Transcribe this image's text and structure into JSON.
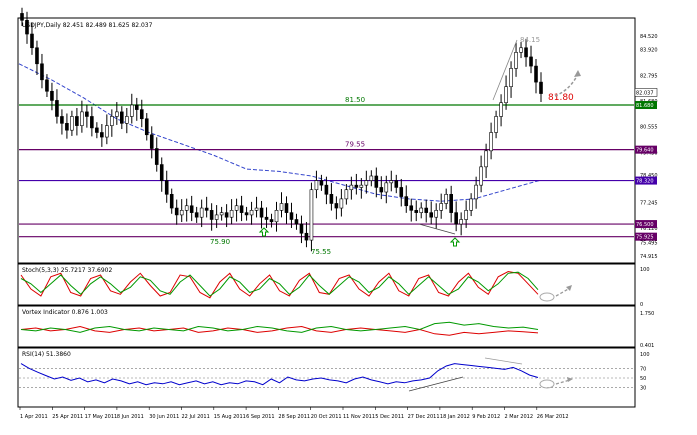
{
  "chart_data": [
    {
      "type": "candlestick",
      "title": "USDJPY,Daily  82.451 82.489 81.625 82.037",
      "ylim": [
        74.6,
        85.3
      ],
      "y_ticks": [
        "84.520",
        "83.920",
        "82.795",
        "81.680",
        "80.555",
        "79.430",
        "78.450",
        "77.245",
        "76.120",
        "75.495",
        "74.915"
      ],
      "last_price_label": "82.037",
      "series": [
        {
          "name": "ma",
          "values": [
            83.3,
            82.6,
            81.8,
            80.9,
            80.3,
            79.8,
            79.3,
            78.7,
            78.6,
            78.4,
            78.0,
            77.6,
            77.4,
            77.3,
            77.4,
            77.8,
            78.2
          ]
        }
      ],
      "close": [
        85.2,
        84.6,
        84.0,
        83.3,
        82.6,
        82.1,
        81.7,
        81.0,
        80.7,
        80.4,
        81.0,
        80.6,
        81.2,
        81.0,
        80.5,
        80.3,
        80.1,
        80.6,
        81.0,
        81.2,
        80.7,
        81.0,
        81.5,
        81.3,
        80.9,
        80.2,
        79.6,
        78.9,
        78.2,
        77.6,
        77.0,
        76.7,
        76.9,
        77.1,
        76.8,
        76.6,
        77.0,
        76.9,
        76.5,
        76.7,
        76.8,
        76.6,
        76.9,
        77.1,
        76.8,
        76.7,
        76.9,
        77.0,
        76.6,
        76.5,
        76.4,
        76.9,
        77.2,
        76.8,
        76.5,
        76.3,
        75.9,
        75.6,
        77.8,
        78.2,
        78.0,
        77.6,
        77.2,
        77.0,
        77.4,
        77.8,
        78.0,
        77.9,
        78.0,
        78.2,
        78.4,
        77.9,
        77.7,
        78.1,
        78.2,
        77.9,
        77.5,
        77.1,
        76.9,
        76.8,
        77.0,
        76.8,
        76.6,
        76.9,
        77.2,
        77.6,
        76.8,
        76.3,
        76.5,
        76.9,
        77.4,
        78.0,
        78.8,
        79.5,
        80.3,
        81.0,
        81.6,
        82.3,
        83.1,
        83.8,
        84.0,
        83.6,
        83.2,
        82.5,
        82.0
      ],
      "h_lines": [
        {
          "value": 81.5,
          "color": "#007700",
          "label": "81.50",
          "tag": "81.680"
        },
        {
          "value": 79.55,
          "color": "#660066",
          "label": "79.55",
          "tag": "79.640"
        },
        {
          "value": 78.2,
          "color": "#4400aa",
          "label": "",
          "tag": "78.320"
        },
        {
          "value": 76.3,
          "color": "#660066",
          "label": "",
          "tag": "76.500"
        },
        {
          "value": 75.75,
          "color": "#660066",
          "label": "",
          "tag": "75.925"
        }
      ],
      "annotations": [
        {
          "text": "84.15",
          "color": "#999999"
        },
        {
          "text": "81.80",
          "color": "#dd0000"
        },
        {
          "text": "75.90",
          "color": "#007700"
        },
        {
          "text": "75.55",
          "color": "#007700"
        }
      ],
      "grid": false
    },
    {
      "type": "line",
      "title": "Stoch(5,3,3) 25.7217 37.6902",
      "ylim": [
        0,
        100
      ],
      "y_ticks": [
        "100",
        "0"
      ],
      "series": [
        {
          "name": "main",
          "color": "#dd0000",
          "values": [
            80,
            40,
            20,
            75,
            85,
            30,
            20,
            70,
            80,
            35,
            25,
            60,
            85,
            50,
            20,
            30,
            80,
            75,
            30,
            15,
            60,
            85,
            40,
            20,
            55,
            80,
            35,
            20,
            65,
            85,
            30,
            25,
            70,
            80,
            40,
            20,
            60,
            85,
            35,
            20,
            70,
            80,
            30,
            20,
            60,
            85,
            45,
            25,
            75,
            90,
            85,
            55,
            25
          ]
        },
        {
          "name": "signal",
          "color": "#009900",
          "values": [
            70,
            55,
            30,
            55,
            80,
            50,
            25,
            55,
            75,
            55,
            30,
            45,
            75,
            65,
            35,
            25,
            60,
            80,
            50,
            20,
            40,
            75,
            60,
            30,
            40,
            70,
            55,
            25,
            45,
            80,
            50,
            25,
            50,
            75,
            60,
            30,
            45,
            75,
            55,
            25,
            50,
            75,
            50,
            25,
            40,
            75,
            60,
            35,
            55,
            85,
            88,
            70,
            38
          ]
        }
      ]
    },
    {
      "type": "line",
      "title": "Vortex Indicator 0.876 1.003",
      "y_ticks": [
        "1.750",
        "0.401"
      ],
      "series": [
        {
          "name": "vi_plus",
          "color": "#dd0000",
          "values": [
            1.0,
            1.05,
            0.95,
            1.0,
            1.1,
            0.95,
            0.9,
            1.0,
            1.05,
            0.95,
            1.0,
            1.05,
            0.9,
            0.95,
            1.05,
            1.0,
            0.9,
            0.95,
            1.05,
            1.1,
            0.95,
            0.9,
            1.0,
            1.05,
            1.0,
            0.95,
            0.9,
            1.0,
            0.85,
            0.8,
            0.9,
            0.85,
            0.9,
            0.95,
            0.92,
            0.88
          ]
        },
        {
          "name": "vi_minus",
          "color": "#009900",
          "values": [
            1.0,
            0.95,
            1.05,
            1.0,
            0.9,
            1.05,
            1.1,
            1.0,
            0.95,
            1.05,
            1.0,
            0.95,
            1.1,
            1.05,
            0.95,
            1.0,
            1.1,
            1.05,
            0.95,
            0.9,
            1.05,
            1.1,
            1.0,
            0.95,
            1.0,
            1.05,
            1.1,
            1.0,
            1.2,
            1.25,
            1.15,
            1.2,
            1.1,
            1.05,
            1.08,
            1.0
          ]
        }
      ]
    },
    {
      "type": "line",
      "title": "RSI(14) 51.3860",
      "ylim": [
        0,
        100
      ],
      "y_ticks": [
        "100",
        "70",
        "50",
        "30"
      ],
      "series": [
        {
          "name": "rsi",
          "color": "#0000cc",
          "values": [
            80,
            70,
            62,
            55,
            48,
            52,
            45,
            50,
            42,
            46,
            40,
            48,
            44,
            38,
            42,
            36,
            40,
            38,
            42,
            36,
            40,
            44,
            38,
            42,
            36,
            40,
            38,
            44,
            42,
            36,
            48,
            40,
            52,
            46,
            44,
            48,
            50,
            46,
            44,
            40,
            48,
            52,
            46,
            42,
            38,
            42,
            40,
            44,
            46,
            50,
            65,
            75,
            80,
            78,
            76,
            74,
            72,
            70,
            68,
            72,
            65,
            56,
            51
          ]
        }
      ],
      "annotations": [
        {
          "text": "70"
        },
        {
          "text": "50"
        },
        {
          "text": "30"
        }
      ]
    }
  ],
  "x_axis_labels": [
    "1 Apr 2011",
    "25 Apr 2011",
    "17 May 2011",
    "8 Jun 2011",
    "30 Jun 2011",
    "22 Jul 2011",
    "15 Aug 2011",
    "6 Sep 2011",
    "28 Sep 2011",
    "20 Oct 2011",
    "11 Nov 2011",
    "5 Dec 2011",
    "27 Dec 2011",
    "18 Jan 2012",
    "9 Feb 2012",
    "2 Mar 2012",
    "26 Mar 2012"
  ]
}
